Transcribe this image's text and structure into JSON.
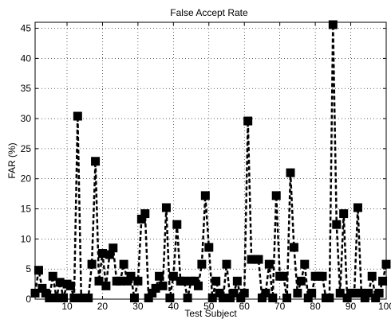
{
  "chart_data": {
    "type": "line",
    "title": "False Accept Rate",
    "xlabel": "Test Subject",
    "ylabel": "FAR (%)",
    "xlim": [
      1,
      100
    ],
    "ylim": [
      0,
      46
    ],
    "grid": true,
    "x_ticks": [
      10,
      20,
      30,
      40,
      50,
      60,
      70,
      80,
      90,
      100
    ],
    "x_tick_labels": [
      "10",
      "20",
      "30",
      "40",
      "50",
      "60",
      "70",
      "80",
      "90",
      "100"
    ],
    "y_ticks": [
      0,
      5,
      10,
      15,
      20,
      25,
      30,
      35,
      40,
      45
    ],
    "y_tick_labels": [
      "0",
      "5",
      "10",
      "15",
      "20",
      "25",
      "30",
      "35",
      "40",
      "45"
    ],
    "line_style": "dashed",
    "marker": "filled-square",
    "series_color": "#000000",
    "series": [
      {
        "x": [
          1,
          2,
          3,
          4,
          5,
          6,
          7,
          8,
          9,
          10,
          11,
          12,
          13,
          14,
          15,
          16,
          17,
          18,
          19,
          20,
          21,
          22,
          23,
          24,
          25,
          26,
          27,
          28,
          29,
          30,
          31,
          32,
          33,
          34,
          35,
          36,
          37,
          38,
          39,
          40,
          41,
          42,
          43,
          44,
          45,
          46,
          47,
          48,
          49,
          50,
          51,
          52,
          53,
          54,
          55,
          56,
          57,
          58,
          59,
          60,
          61,
          62,
          63,
          64,
          65,
          66,
          67,
          68,
          69,
          70,
          71,
          72,
          73,
          74,
          75,
          76,
          77,
          78,
          79,
          80,
          81,
          82,
          83,
          84,
          85,
          86,
          87,
          88,
          89,
          90,
          91,
          92,
          93,
          94,
          95,
          96,
          97,
          98,
          99,
          100
        ],
        "values": [
          1.0,
          4.8,
          1.8,
          1.0,
          0.2,
          3.8,
          0.2,
          2.8,
          0.2,
          2.5,
          2.2,
          0.2,
          30.4,
          0.2,
          0.2,
          0.2,
          5.8,
          22.9,
          3.0,
          7.6,
          2.2,
          7.4,
          8.5,
          3.0,
          3.0,
          5.8,
          3.0,
          3.8,
          0.2,
          3.0,
          13.3,
          14.2,
          0.2,
          1.0,
          1.8,
          3.8,
          2.2,
          15.2,
          0.2,
          3.8,
          12.4,
          3.0,
          3.0,
          0.2,
          3.0,
          3.0,
          2.2,
          5.8,
          17.2,
          8.6,
          0.2,
          3.0,
          1.0,
          0.2,
          5.8,
          0.2,
          1.0,
          3.0,
          0.2,
          1.0,
          29.6,
          6.6,
          6.6,
          6.6,
          0.2,
          1.0,
          5.8,
          0.2,
          17.2,
          3.8,
          3.8,
          0.2,
          21.0,
          8.6,
          1.0,
          3.0,
          5.8,
          0.2,
          1.0,
          3.8,
          3.8,
          3.8,
          0.2,
          0.2,
          45.6,
          12.4,
          1.0,
          14.2,
          0.2,
          1.0,
          1.0,
          15.2,
          1.0,
          0.2,
          1.0,
          3.8,
          0.2,
          1.0,
          3.0,
          5.8
        ]
      }
    ]
  }
}
